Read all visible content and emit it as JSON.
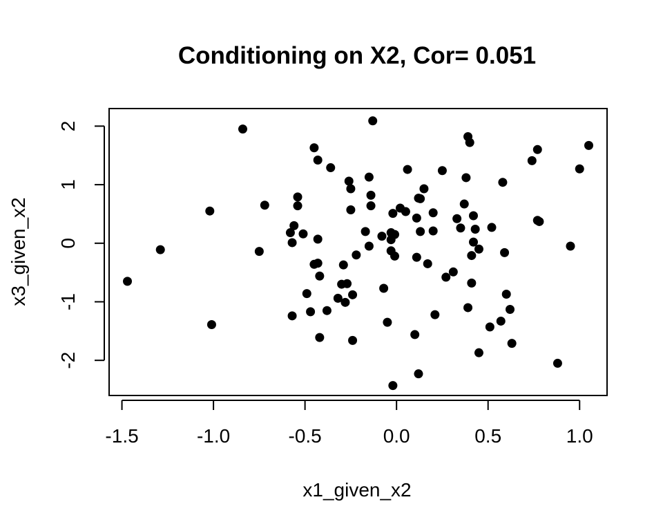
{
  "chart_data": {
    "type": "scatter",
    "title": "Conditioning on X2, Cor= 0.051",
    "xlabel": "x1_given_x2",
    "ylabel": "x3_given_x2",
    "xlim": [
      -1.57,
      1.15
    ],
    "ylim": [
      -2.6,
      2.3
    ],
    "xticks": [
      -1.5,
      -1.0,
      -0.5,
      0.0,
      0.5,
      1.0
    ],
    "xtick_labels": [
      "-1.5",
      "-1.0",
      "-0.5",
      "0.0",
      "0.5",
      "1.0"
    ],
    "yticks": [
      -2,
      -1,
      0,
      1,
      2
    ],
    "ytick_labels": [
      "-2",
      "-1",
      "0",
      "1",
      "2"
    ],
    "grid": false,
    "marker_color": "#000000",
    "points": [
      {
        "x": -1.47,
        "y": -0.65
      },
      {
        "x": -1.29,
        "y": -0.11
      },
      {
        "x": -1.02,
        "y": 0.55
      },
      {
        "x": -1.01,
        "y": -1.39
      },
      {
        "x": -0.84,
        "y": 1.95
      },
      {
        "x": -0.75,
        "y": -0.14
      },
      {
        "x": -0.72,
        "y": 0.65
      },
      {
        "x": -0.58,
        "y": 0.18
      },
      {
        "x": -0.57,
        "y": 0.01
      },
      {
        "x": -0.57,
        "y": -1.24
      },
      {
        "x": -0.56,
        "y": 0.3
      },
      {
        "x": -0.54,
        "y": 0.79
      },
      {
        "x": -0.54,
        "y": 0.64
      },
      {
        "x": -0.51,
        "y": 0.16
      },
      {
        "x": -0.49,
        "y": -0.86
      },
      {
        "x": -0.47,
        "y": -1.17
      },
      {
        "x": -0.45,
        "y": -0.36
      },
      {
        "x": -0.45,
        "y": 1.63
      },
      {
        "x": -0.43,
        "y": 1.42
      },
      {
        "x": -0.43,
        "y": 0.07
      },
      {
        "x": -0.43,
        "y": -0.34
      },
      {
        "x": -0.42,
        "y": -0.56
      },
      {
        "x": -0.42,
        "y": -1.61
      },
      {
        "x": -0.38,
        "y": -1.15
      },
      {
        "x": -0.36,
        "y": 1.29
      },
      {
        "x": -0.32,
        "y": -0.94
      },
      {
        "x": -0.3,
        "y": -0.7
      },
      {
        "x": -0.29,
        "y": -0.37
      },
      {
        "x": -0.28,
        "y": -1.01
      },
      {
        "x": -0.27,
        "y": -0.69
      },
      {
        "x": -0.26,
        "y": 1.06
      },
      {
        "x": -0.25,
        "y": 0.93
      },
      {
        "x": -0.25,
        "y": 0.57
      },
      {
        "x": -0.24,
        "y": -0.88
      },
      {
        "x": -0.24,
        "y": -1.66
      },
      {
        "x": -0.22,
        "y": -0.2
      },
      {
        "x": -0.17,
        "y": 0.2
      },
      {
        "x": -0.15,
        "y": 1.13
      },
      {
        "x": -0.15,
        "y": -0.05
      },
      {
        "x": -0.14,
        "y": 0.82
      },
      {
        "x": -0.14,
        "y": 0.64
      },
      {
        "x": -0.13,
        "y": 2.09
      },
      {
        "x": -0.08,
        "y": 0.12
      },
      {
        "x": -0.07,
        "y": -0.77
      },
      {
        "x": -0.05,
        "y": -1.35
      },
      {
        "x": -0.03,
        "y": 0.06
      },
      {
        "x": -0.03,
        "y": 0.18
      },
      {
        "x": -0.03,
        "y": -0.13
      },
      {
        "x": -0.02,
        "y": 0.51
      },
      {
        "x": -0.01,
        "y": 0.15
      },
      {
        "x": -0.01,
        "y": -0.22
      },
      {
        "x": -0.02,
        "y": -2.43
      },
      {
        "x": 0.02,
        "y": 0.6
      },
      {
        "x": 0.05,
        "y": 0.54
      },
      {
        "x": 0.06,
        "y": 1.26
      },
      {
        "x": 0.1,
        "y": -1.56
      },
      {
        "x": 0.11,
        "y": -0.24
      },
      {
        "x": 0.11,
        "y": 0.43
      },
      {
        "x": 0.12,
        "y": 0.77
      },
      {
        "x": 0.12,
        "y": -2.23
      },
      {
        "x": 0.13,
        "y": 0.76
      },
      {
        "x": 0.13,
        "y": 0.2
      },
      {
        "x": 0.15,
        "y": 0.93
      },
      {
        "x": 0.17,
        "y": -0.35
      },
      {
        "x": 0.2,
        "y": 0.52
      },
      {
        "x": 0.2,
        "y": 0.21
      },
      {
        "x": 0.21,
        "y": -1.22
      },
      {
        "x": 0.25,
        "y": 1.24
      },
      {
        "x": 0.27,
        "y": -0.58
      },
      {
        "x": 0.31,
        "y": -0.49
      },
      {
        "x": 0.33,
        "y": 0.42
      },
      {
        "x": 0.35,
        "y": 0.26
      },
      {
        "x": 0.37,
        "y": 0.67
      },
      {
        "x": 0.38,
        "y": 1.12
      },
      {
        "x": 0.39,
        "y": -1.1
      },
      {
        "x": 0.39,
        "y": 1.82
      },
      {
        "x": 0.4,
        "y": 1.72
      },
      {
        "x": 0.41,
        "y": -0.68
      },
      {
        "x": 0.41,
        "y": -0.21
      },
      {
        "x": 0.42,
        "y": 0.47
      },
      {
        "x": 0.42,
        "y": 0.02
      },
      {
        "x": 0.43,
        "y": 0.24
      },
      {
        "x": 0.45,
        "y": -0.1
      },
      {
        "x": 0.45,
        "y": -1.87
      },
      {
        "x": 0.51,
        "y": -1.43
      },
      {
        "x": 0.52,
        "y": 0.27
      },
      {
        "x": 0.57,
        "y": -1.33
      },
      {
        "x": 0.58,
        "y": 1.04
      },
      {
        "x": 0.59,
        "y": -0.16
      },
      {
        "x": 0.6,
        "y": -0.87
      },
      {
        "x": 0.62,
        "y": -1.13
      },
      {
        "x": 0.63,
        "y": -1.71
      },
      {
        "x": 0.74,
        "y": 1.41
      },
      {
        "x": 0.77,
        "y": 0.39
      },
      {
        "x": 0.77,
        "y": 1.6
      },
      {
        "x": 0.78,
        "y": 0.37
      },
      {
        "x": 0.88,
        "y": -2.05
      },
      {
        "x": 0.95,
        "y": -0.05
      },
      {
        "x": 1.0,
        "y": 1.27
      },
      {
        "x": 1.05,
        "y": 1.67
      }
    ]
  }
}
